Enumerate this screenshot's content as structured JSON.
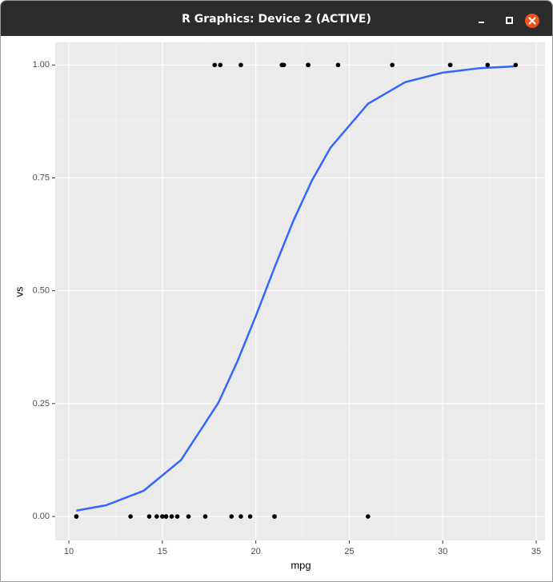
{
  "window": {
    "title": "R Graphics: Device 2 (ACTIVE)"
  },
  "chart_data": {
    "type": "scatter",
    "x_label": "mpg",
    "y_label": "vs",
    "points": {
      "color": "#000000",
      "x": [
        21.0,
        21.0,
        22.8,
        21.4,
        18.7,
        18.1,
        14.3,
        24.4,
        22.8,
        19.2,
        17.8,
        16.4,
        17.3,
        15.2,
        10.4,
        10.4,
        14.7,
        32.4,
        30.4,
        33.9,
        21.5,
        15.5,
        15.2,
        13.3,
        19.2,
        27.3,
        26.0,
        30.4,
        15.8,
        19.7,
        15.0,
        21.4
      ],
      "y": [
        0,
        0,
        1,
        1,
        0,
        1,
        0,
        1,
        1,
        1,
        1,
        0,
        0,
        0,
        0,
        0,
        0,
        1,
        1,
        1,
        1,
        0,
        0,
        0,
        0,
        1,
        0,
        1,
        0,
        0,
        0,
        1
      ]
    },
    "curve": {
      "color": "#3366ff",
      "x": [
        10.4,
        12,
        14,
        16,
        18,
        19,
        20,
        21,
        22,
        23,
        24,
        26,
        28,
        30,
        32,
        33.9
      ],
      "y": [
        0.013,
        0.025,
        0.057,
        0.125,
        0.252,
        0.342,
        0.444,
        0.551,
        0.654,
        0.744,
        0.817,
        0.914,
        0.962,
        0.983,
        0.993,
        0.997
      ]
    },
    "xlim": [
      9.27,
      35.47
    ],
    "ylim": [
      -0.053,
      1.05
    ],
    "xticks": [
      10,
      15,
      20,
      25,
      30,
      35
    ],
    "yticks": [
      {
        "value": 0,
        "label": "0.00"
      },
      {
        "value": 0.25,
        "label": "0.25"
      },
      {
        "value": 0.5,
        "label": "0.50"
      },
      {
        "value": 0.75,
        "label": "0.75"
      },
      {
        "value": 1,
        "label": "1.00"
      }
    ],
    "x_minor_grid": [
      12.5,
      17.5,
      22.5,
      27.5,
      32.5
    ],
    "y_minor_grid": [
      0.125,
      0.375,
      0.625,
      0.875
    ]
  }
}
